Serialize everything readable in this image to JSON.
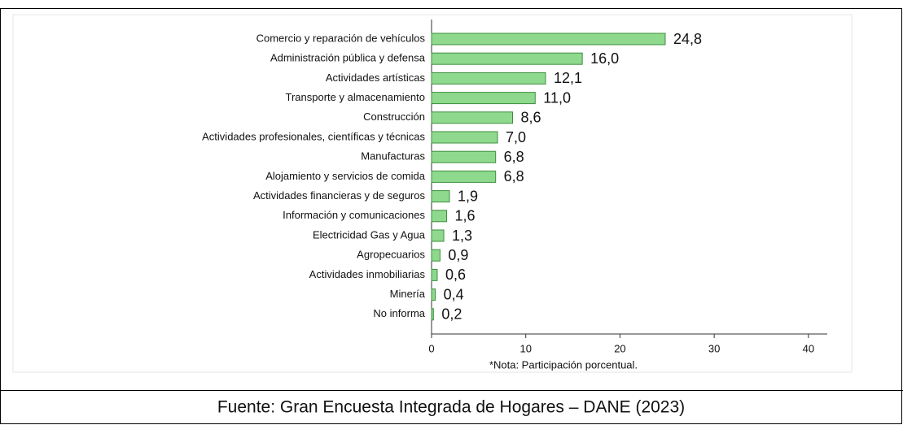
{
  "chart_data": {
    "type": "bar",
    "orientation": "horizontal",
    "categories": [
      "Comercio y reparación de vehículos",
      "Administración pública y defensa",
      "Actividades  artísticas",
      "Transporte  y almacenamiento",
      "Construcción",
      "Actividades profesionales, científicas y técnicas",
      "Manufacturas",
      "Alojamiento y servicios de comida",
      "Actividades financieras y de seguros",
      "Información y comunicaciones",
      "Electricidad  Gas y Agua",
      "Agropecuarios",
      "Actividades inmobiliarias",
      "Minería",
      "No informa"
    ],
    "values": [
      24.8,
      16.0,
      12.1,
      11.0,
      8.6,
      7.0,
      6.8,
      6.8,
      1.9,
      1.6,
      1.3,
      0.9,
      0.6,
      0.4,
      0.2
    ],
    "value_labels": [
      "24,8",
      "16,0",
      "12,1",
      "11,0",
      "8,6",
      "7,0",
      "6,8",
      "6,8",
      "1,9",
      "1,6",
      "1,3",
      "0,9",
      "0,6",
      "0,4",
      "0,2"
    ],
    "color": "#8fd98f",
    "xlim": [
      0,
      42
    ],
    "xticks": [
      0,
      10,
      20,
      30,
      40
    ],
    "annotation": "*Nota: Participación porcentual.",
    "source": "Fuente: Gran Encuesta Integrada de Hogares – DANE (2023)"
  }
}
